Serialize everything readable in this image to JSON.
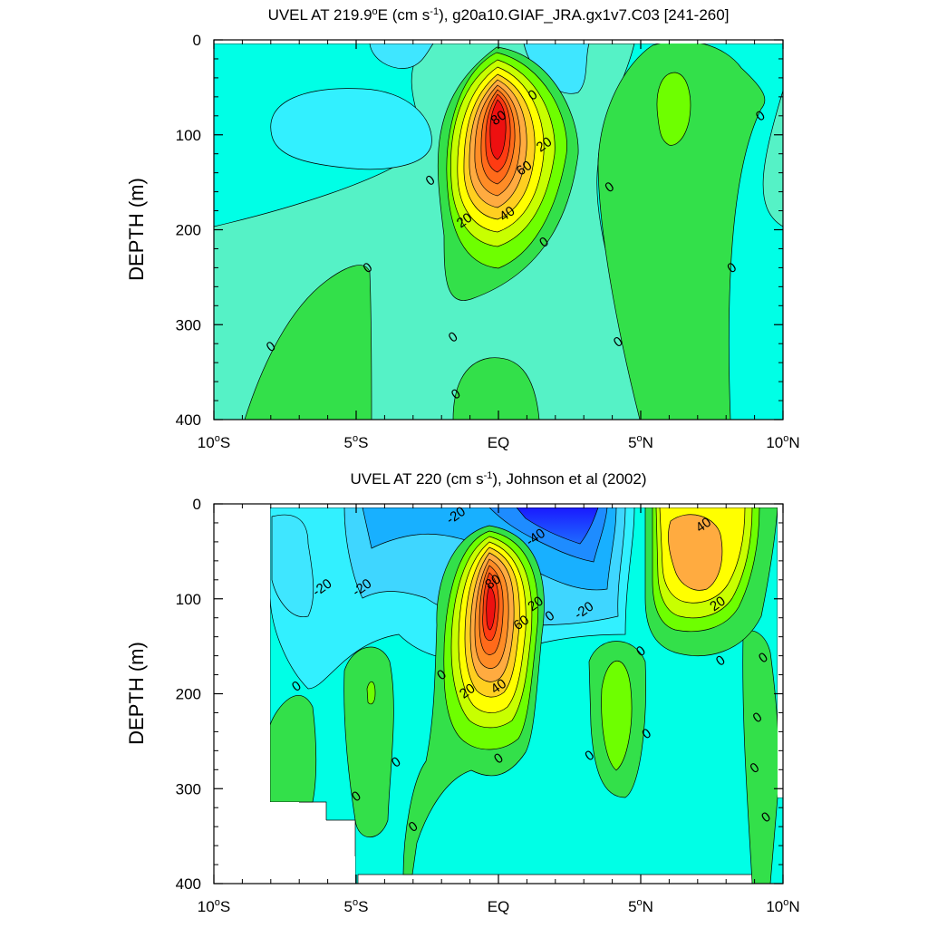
{
  "chart_data": [
    {
      "type": "contour",
      "title": "UVEL AT 219.9°E (cm s⁻¹), g20a10.GIAF_JRA.gx1v7.C03 [241-260]",
      "title_parts": {
        "a": "UVEL AT 219.9",
        "deg": "o",
        "b": "E (cm s",
        "sup": "-1",
        "c": "), g20a10.GIAF_JRA.gx1v7.C03 [241-260]"
      },
      "ylabel": "DEPTH (m)",
      "xlim": [
        -10,
        10
      ],
      "ylim": [
        400,
        0
      ],
      "yticks": [
        "0",
        "100",
        "200",
        "300",
        "400"
      ],
      "xticks": [
        {
          "num": "10",
          "deg": "o",
          "hemi": "S"
        },
        {
          "num": "5",
          "deg": "o",
          "hemi": "S"
        },
        {
          "num": "EQ",
          "deg": "",
          "hemi": ""
        },
        {
          "num": "5",
          "deg": "o",
          "hemi": "N"
        },
        {
          "num": "10",
          "deg": "o",
          "hemi": "N"
        }
      ],
      "contour_interval": 10,
      "max_value_cm_s": 95,
      "core": {
        "lat": 0,
        "depth": 110
      },
      "contour_labels": [
        {
          "text": "0",
          "lat": 1.2,
          "depth": 58
        },
        {
          "text": "80",
          "lat": 0.0,
          "depth": 82
        },
        {
          "text": "20",
          "lat": 1.6,
          "depth": 110
        },
        {
          "text": "60",
          "lat": 0.9,
          "depth": 135
        },
        {
          "text": "0",
          "lat": -2.4,
          "depth": 148
        },
        {
          "text": "0",
          "lat": 3.9,
          "depth": 155
        },
        {
          "text": "40",
          "lat": 0.3,
          "depth": 183
        },
        {
          "text": "20",
          "lat": -1.2,
          "depth": 190
        },
        {
          "text": "0",
          "lat": 1.6,
          "depth": 213
        },
        {
          "text": "0",
          "lat": -4.6,
          "depth": 240
        },
        {
          "text": "0",
          "lat": 8.2,
          "depth": 240
        },
        {
          "text": "0",
          "lat": 9.2,
          "depth": 80
        },
        {
          "text": "0",
          "lat": -8.0,
          "depth": 323
        },
        {
          "text": "0",
          "lat": -1.6,
          "depth": 313
        },
        {
          "text": "0",
          "lat": 4.2,
          "depth": 318
        },
        {
          "text": "0",
          "lat": -1.5,
          "depth": 373
        }
      ]
    },
    {
      "type": "contour",
      "title": "UVEL AT 220 (cm s⁻¹), Johnson et al (2002)",
      "title_parts": {
        "a": "UVEL AT 220",
        "deg": "",
        "b": " (cm s",
        "sup": "-1",
        "c": "), Johnson et al (2002)"
      },
      "ylabel": "DEPTH (m)",
      "xlim": [
        -10,
        10
      ],
      "ylim": [
        400,
        0
      ],
      "yticks": [
        "0",
        "100",
        "200",
        "300",
        "400"
      ],
      "xticks": [
        {
          "num": "10",
          "deg": "o",
          "hemi": "S"
        },
        {
          "num": "5",
          "deg": "o",
          "hemi": "S"
        },
        {
          "num": "EQ",
          "deg": "",
          "hemi": ""
        },
        {
          "num": "5",
          "deg": "o",
          "hemi": "N"
        },
        {
          "num": "10",
          "deg": "o",
          "hemi": "N"
        }
      ],
      "contour_interval": 10,
      "max_value_cm_s": 95,
      "min_value_cm_s": -70,
      "core": {
        "lat": -0.2,
        "depth": 110
      },
      "contour_labels": [
        {
          "text": "-20",
          "lat": -1.5,
          "depth": 12
        },
        {
          "text": "-40",
          "lat": 1.3,
          "depth": 35
        },
        {
          "text": "40",
          "lat": 7.2,
          "depth": 22
        },
        {
          "text": "80",
          "lat": -0.2,
          "depth": 82
        },
        {
          "text": "-20",
          "lat": -6.2,
          "depth": 88
        },
        {
          "text": "-20",
          "lat": -4.8,
          "depth": 88
        },
        {
          "text": "20",
          "lat": 1.3,
          "depth": 105
        },
        {
          "text": "-20",
          "lat": 3.0,
          "depth": 112
        },
        {
          "text": "20",
          "lat": 7.7,
          "depth": 105
        },
        {
          "text": "0",
          "lat": 1.8,
          "depth": 118
        },
        {
          "text": "60",
          "lat": 0.8,
          "depth": 125
        },
        {
          "text": "0",
          "lat": 5.0,
          "depth": 155
        },
        {
          "text": "0",
          "lat": 9.3,
          "depth": 162
        },
        {
          "text": "0",
          "lat": 7.8,
          "depth": 165
        },
        {
          "text": "0",
          "lat": -2.0,
          "depth": 180
        },
        {
          "text": "0",
          "lat": -7.1,
          "depth": 192
        },
        {
          "text": "40",
          "lat": 0.0,
          "depth": 192
        },
        {
          "text": "20",
          "lat": -1.1,
          "depth": 197
        },
        {
          "text": "0",
          "lat": 9.1,
          "depth": 225
        },
        {
          "text": "0",
          "lat": 5.2,
          "depth": 242
        },
        {
          "text": "0",
          "lat": 3.2,
          "depth": 265
        },
        {
          "text": "0",
          "lat": 0.0,
          "depth": 268
        },
        {
          "text": "0",
          "lat": -3.6,
          "depth": 272
        },
        {
          "text": "0",
          "lat": 9.0,
          "depth": 278
        },
        {
          "text": "0",
          "lat": -5.0,
          "depth": 308
        },
        {
          "text": "0",
          "lat": 9.4,
          "depth": 330
        },
        {
          "text": "0",
          "lat": -3.0,
          "depth": 340
        }
      ]
    }
  ]
}
